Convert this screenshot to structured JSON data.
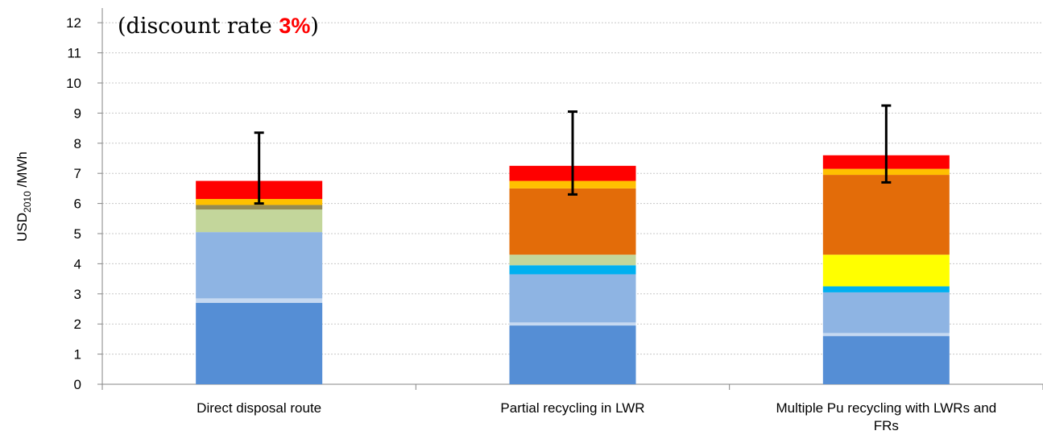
{
  "chart_data": {
    "type": "bar",
    "stacked": true,
    "title": "",
    "annotation": {
      "prefix": "(discount rate ",
      "rate": "3%",
      "suffix": ")",
      "rate_color": "#ff0000"
    },
    "ylabel": {
      "base": "USD",
      "subscript": "2010",
      "unit": " /MWh"
    },
    "xlabel": "",
    "ylim": [
      0,
      12.5
    ],
    "yticks": [
      "0",
      "1",
      "2",
      "3",
      "4",
      "5",
      "6",
      "7",
      "8",
      "9",
      "10",
      "11",
      "12"
    ],
    "grid": true,
    "legend": "none",
    "categories": [
      [
        "Direct disposal route"
      ],
      [
        "Partial recycling in LWR"
      ],
      [
        "Multiple Pu recycling with LWRs and",
        "FRs"
      ]
    ],
    "series": [
      {
        "color": "#558ed5",
        "values": [
          2.7,
          1.95,
          1.6
        ]
      },
      {
        "color": "#c6d9f1",
        "values": [
          0.15,
          0.1,
          0.1
        ]
      },
      {
        "color": "#8eb4e3",
        "values": [
          2.2,
          1.6,
          1.35
        ]
      },
      {
        "color": "#00b0f0",
        "values": [
          0.0,
          0.3,
          0.2
        ]
      },
      {
        "color": "#c3d69b",
        "values": [
          0.75,
          0.35,
          0.0
        ]
      },
      {
        "color": "#ffff00",
        "values": [
          0.0,
          0.0,
          1.05
        ]
      },
      {
        "color": "#948a54",
        "values": [
          0.15,
          0.0,
          0.0
        ]
      },
      {
        "color": "#e36c09",
        "values": [
          0.0,
          2.2,
          2.65
        ]
      },
      {
        "color": "#ffc000",
        "values": [
          0.2,
          0.25,
          0.2
        ]
      },
      {
        "color": "#ff0000",
        "values": [
          0.6,
          0.5,
          0.45
        ]
      }
    ],
    "error_bars": [
      {
        "low": 6.0,
        "high": 8.35
      },
      {
        "low": 6.3,
        "high": 9.05
      },
      {
        "low": 6.7,
        "high": 9.25
      }
    ]
  }
}
